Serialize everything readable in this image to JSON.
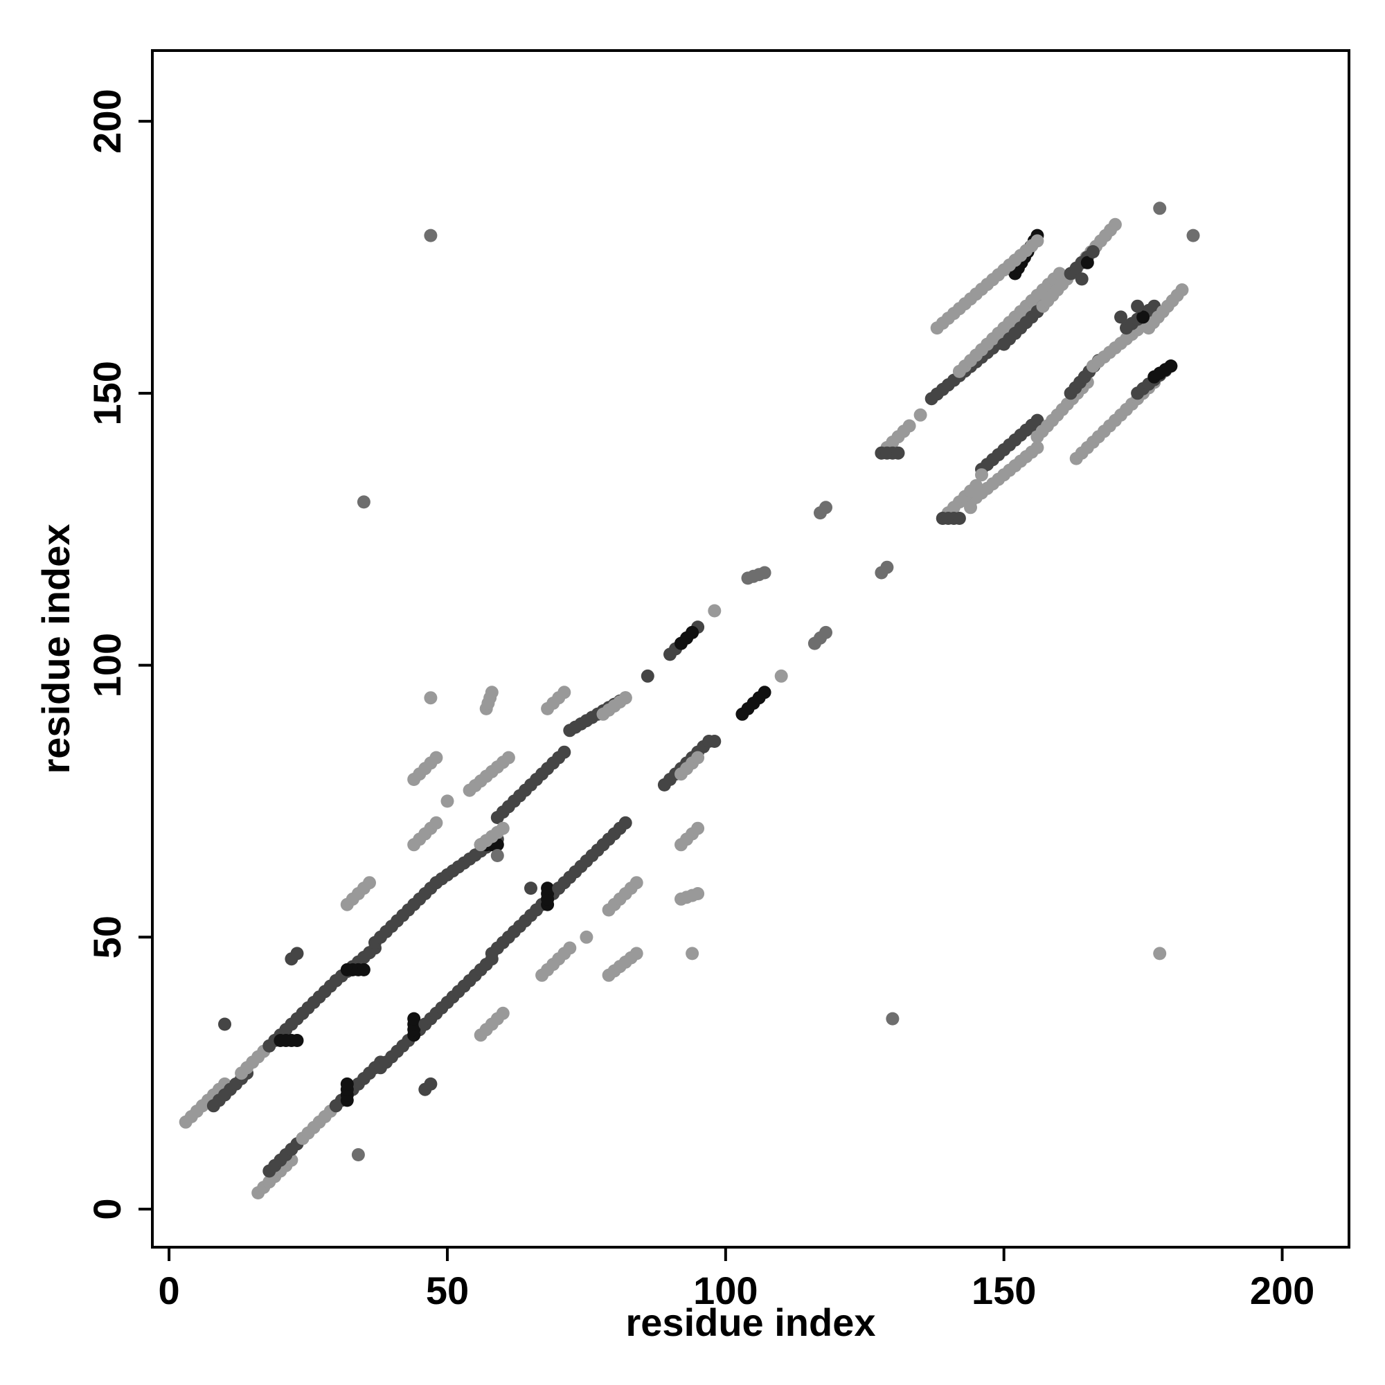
{
  "chart_data": {
    "type": "scatter",
    "title": "",
    "xlabel": "residue index",
    "ylabel": "residue index",
    "xlim": [
      -3,
      212
    ],
    "ylim": [
      -7,
      213
    ],
    "xticks": [
      0,
      50,
      100,
      150,
      200
    ],
    "yticks": [
      0,
      50,
      100,
      150,
      200
    ],
    "xtick_labels": [
      "0",
      "50",
      "100",
      "150",
      "200"
    ],
    "ytick_labels": [
      "0",
      "50",
      "100",
      "150",
      "200"
    ],
    "grid": false,
    "legend": "none",
    "shade_colors": {
      "light": "#999999",
      "mid": "#6e6e6e",
      "dark": "#454545",
      "black": "#111111"
    },
    "segments": [
      {
        "x0": 3,
        "y0": 16,
        "x1": 10,
        "y1": 23,
        "shade": "light"
      },
      {
        "x0": 8,
        "y0": 19,
        "x1": 14,
        "y1": 25,
        "shade": "dark"
      },
      {
        "x0": 13,
        "y0": 25,
        "x1": 20,
        "y1": 32,
        "shade": "light"
      },
      {
        "x0": 18,
        "y0": 30,
        "x1": 24,
        "y1": 36,
        "shade": "dark"
      },
      {
        "x0": 20,
        "y0": 31,
        "x1": 23,
        "y1": 31,
        "shade": "black"
      },
      {
        "x0": 24,
        "y0": 36,
        "x1": 30,
        "y1": 42,
        "shade": "dark"
      },
      {
        "x0": 30,
        "y0": 42,
        "x1": 37,
        "y1": 48,
        "shade": "dark"
      },
      {
        "x0": 32,
        "y0": 44,
        "x1": 35,
        "y1": 44,
        "shade": "black"
      },
      {
        "x0": 37,
        "y0": 49,
        "x1": 48,
        "y1": 60,
        "shade": "dark"
      },
      {
        "x0": 48,
        "y0": 60,
        "x1": 59,
        "y1": 68,
        "shade": "dark"
      },
      {
        "x0": 56,
        "y0": 67,
        "x1": 59,
        "y1": 67,
        "shade": "black"
      },
      {
        "x0": 59,
        "y0": 72,
        "x1": 71,
        "y1": 84,
        "shade": "dark"
      },
      {
        "x0": 72,
        "y0": 88,
        "x1": 82,
        "y1": 94,
        "shade": "dark"
      },
      {
        "x0": 90,
        "y0": 102,
        "x1": 95,
        "y1": 107,
        "shade": "dark"
      },
      {
        "x0": 92,
        "y0": 104,
        "x1": 94,
        "y1": 106,
        "shade": "black"
      },
      {
        "x0": 16,
        "y0": 3,
        "x1": 22,
        "y1": 9,
        "shade": "light"
      },
      {
        "x0": 18,
        "y0": 7,
        "x1": 24,
        "y1": 13,
        "shade": "dark"
      },
      {
        "x0": 24,
        "y0": 13,
        "x1": 31,
        "y1": 20,
        "shade": "light"
      },
      {
        "x0": 30,
        "y0": 19,
        "x1": 38,
        "y1": 27,
        "shade": "dark"
      },
      {
        "x0": 32,
        "y0": 20,
        "x1": 32,
        "y1": 23,
        "shade": "black"
      },
      {
        "x0": 38,
        "y0": 26,
        "x1": 46,
        "y1": 34,
        "shade": "dark"
      },
      {
        "x0": 44,
        "y0": 32,
        "x1": 44,
        "y1": 35,
        "shade": "black"
      },
      {
        "x0": 46,
        "y0": 34,
        "x1": 58,
        "y1": 46,
        "shade": "dark"
      },
      {
        "x0": 58,
        "y0": 47,
        "x1": 70,
        "y1": 59,
        "shade": "dark"
      },
      {
        "x0": 68,
        "y0": 56,
        "x1": 68,
        "y1": 59,
        "shade": "black"
      },
      {
        "x0": 70,
        "y0": 59,
        "x1": 82,
        "y1": 71,
        "shade": "dark"
      },
      {
        "x0": 89,
        "y0": 78,
        "x1": 97,
        "y1": 86,
        "shade": "dark"
      },
      {
        "x0": 103,
        "y0": 91,
        "x1": 107,
        "y1": 95,
        "shade": "black"
      },
      {
        "x0": 152,
        "y0": 172,
        "x1": 156,
        "y1": 179,
        "shade": "black"
      },
      {
        "x0": 138,
        "y0": 162,
        "x1": 156,
        "y1": 178,
        "shade": "light"
      },
      {
        "x0": 137,
        "y0": 149,
        "x1": 150,
        "y1": 160,
        "shade": "dark"
      },
      {
        "x0": 142,
        "y0": 154,
        "x1": 160,
        "y1": 172,
        "shade": "light"
      },
      {
        "x0": 150,
        "y0": 159,
        "x1": 157,
        "y1": 166,
        "shade": "dark"
      },
      {
        "x0": 157,
        "y0": 166,
        "x1": 170,
        "y1": 181,
        "shade": "light"
      },
      {
        "x0": 162,
        "y0": 172,
        "x1": 166,
        "y1": 176,
        "shade": "dark"
      },
      {
        "x0": 144,
        "y0": 130,
        "x1": 156,
        "y1": 140,
        "shade": "light"
      },
      {
        "x0": 146,
        "y0": 136,
        "x1": 156,
        "y1": 145,
        "shade": "dark"
      },
      {
        "x0": 156,
        "y0": 142,
        "x1": 165,
        "y1": 152,
        "shade": "light"
      },
      {
        "x0": 162,
        "y0": 150,
        "x1": 167,
        "y1": 156,
        "shade": "dark"
      },
      {
        "x0": 166,
        "y0": 155,
        "x1": 178,
        "y1": 165,
        "shade": "light"
      },
      {
        "x0": 172,
        "y0": 162,
        "x1": 177,
        "y1": 166,
        "shade": "dark"
      },
      {
        "x0": 176,
        "y0": 162,
        "x1": 182,
        "y1": 169,
        "shade": "light"
      },
      {
        "x0": 163,
        "y0": 138,
        "x1": 177,
        "y1": 152,
        "shade": "light"
      },
      {
        "x0": 174,
        "y0": 150,
        "x1": 180,
        "y1": 155,
        "shade": "dark"
      },
      {
        "x0": 177,
        "y0": 153,
        "x1": 180,
        "y1": 155,
        "shade": "black"
      },
      {
        "x0": 128,
        "y0": 139,
        "x1": 133,
        "y1": 144,
        "shade": "light"
      },
      {
        "x0": 128,
        "y0": 139,
        "x1": 131,
        "y1": 139,
        "shade": "dark"
      },
      {
        "x0": 139,
        "y0": 127,
        "x1": 145,
        "y1": 133,
        "shade": "light"
      },
      {
        "x0": 139,
        "y0": 127,
        "x1": 142,
        "y1": 127,
        "shade": "dark"
      },
      {
        "x0": 44,
        "y0": 67,
        "x1": 48,
        "y1": 71,
        "shade": "light"
      },
      {
        "x0": 44,
        "y0": 79,
        "x1": 48,
        "y1": 83,
        "shade": "light"
      },
      {
        "x0": 32,
        "y0": 56,
        "x1": 36,
        "y1": 60,
        "shade": "light"
      },
      {
        "x0": 54,
        "y0": 77,
        "x1": 61,
        "y1": 83,
        "shade": "light"
      },
      {
        "x0": 56,
        "y0": 67,
        "x1": 60,
        "y1": 70,
        "shade": "light"
      },
      {
        "x0": 57,
        "y0": 92,
        "x1": 58,
        "y1": 95,
        "shade": "light"
      },
      {
        "x0": 68,
        "y0": 92,
        "x1": 71,
        "y1": 95,
        "shade": "light"
      },
      {
        "x0": 78,
        "y0": 91,
        "x1": 82,
        "y1": 94,
        "shade": "light"
      },
      {
        "x0": 56,
        "y0": 32,
        "x1": 60,
        "y1": 36,
        "shade": "light"
      },
      {
        "x0": 67,
        "y0": 43,
        "x1": 72,
        "y1": 48,
        "shade": "light"
      },
      {
        "x0": 79,
        "y0": 43,
        "x1": 84,
        "y1": 47,
        "shade": "light"
      },
      {
        "x0": 79,
        "y0": 55,
        "x1": 84,
        "y1": 60,
        "shade": "light"
      },
      {
        "x0": 92,
        "y0": 67,
        "x1": 95,
        "y1": 70,
        "shade": "light"
      },
      {
        "x0": 92,
        "y0": 80,
        "x1": 95,
        "y1": 83,
        "shade": "light"
      },
      {
        "x0": 92,
        "y0": 57,
        "x1": 95,
        "y1": 58,
        "shade": "light"
      },
      {
        "x0": 116,
        "y0": 104,
        "x1": 118,
        "y1": 106,
        "shade": "mid"
      },
      {
        "x0": 104,
        "y0": 116,
        "x1": 107,
        "y1": 117,
        "shade": "mid"
      }
    ],
    "points": [
      {
        "x": 47,
        "y": 179,
        "shade": "mid"
      },
      {
        "x": 35,
        "y": 130,
        "shade": "mid"
      },
      {
        "x": 47,
        "y": 94,
        "shade": "light"
      },
      {
        "x": 10,
        "y": 34,
        "shade": "dark"
      },
      {
        "x": 22,
        "y": 46,
        "shade": "dark"
      },
      {
        "x": 23,
        "y": 47,
        "shade": "dark"
      },
      {
        "x": 34,
        "y": 10,
        "shade": "mid"
      },
      {
        "x": 46,
        "y": 22,
        "shade": "dark"
      },
      {
        "x": 47,
        "y": 23,
        "shade": "dark"
      },
      {
        "x": 50,
        "y": 75,
        "shade": "light"
      },
      {
        "x": 59,
        "y": 65,
        "shade": "mid"
      },
      {
        "x": 65,
        "y": 59,
        "shade": "dark"
      },
      {
        "x": 75,
        "y": 50,
        "shade": "light"
      },
      {
        "x": 94,
        "y": 47,
        "shade": "light"
      },
      {
        "x": 86,
        "y": 98,
        "shade": "dark"
      },
      {
        "x": 98,
        "y": 86,
        "shade": "dark"
      },
      {
        "x": 98,
        "y": 110,
        "shade": "light"
      },
      {
        "x": 110,
        "y": 98,
        "shade": "light"
      },
      {
        "x": 117,
        "y": 128,
        "shade": "mid"
      },
      {
        "x": 118,
        "y": 129,
        "shade": "mid"
      },
      {
        "x": 128,
        "y": 117,
        "shade": "mid"
      },
      {
        "x": 129,
        "y": 118,
        "shade": "mid"
      },
      {
        "x": 130,
        "y": 35,
        "shade": "mid"
      },
      {
        "x": 178,
        "y": 47,
        "shade": "light"
      },
      {
        "x": 178,
        "y": 184,
        "shade": "mid"
      },
      {
        "x": 184,
        "y": 179,
        "shade": "mid"
      },
      {
        "x": 135,
        "y": 146,
        "shade": "light"
      },
      {
        "x": 146,
        "y": 135,
        "shade": "light"
      },
      {
        "x": 144,
        "y": 129,
        "shade": "light"
      },
      {
        "x": 165,
        "y": 174,
        "shade": "black"
      },
      {
        "x": 164,
        "y": 171,
        "shade": "dark"
      },
      {
        "x": 166,
        "y": 176,
        "shade": "dark"
      },
      {
        "x": 175,
        "y": 164,
        "shade": "black"
      },
      {
        "x": 174,
        "y": 166,
        "shade": "dark"
      },
      {
        "x": 171,
        "y": 164,
        "shade": "dark"
      }
    ]
  }
}
